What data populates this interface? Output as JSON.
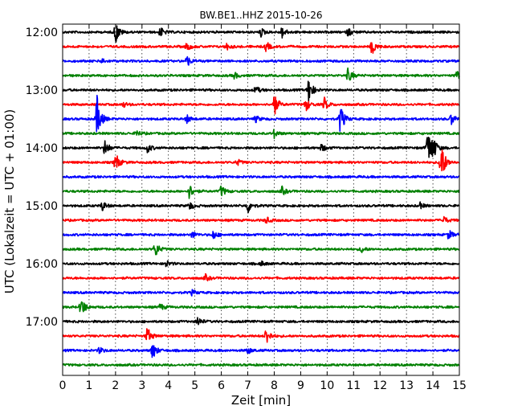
{
  "chart_data": {
    "type": "line",
    "subtype": "helicorder",
    "title": "BW.BE1..HHZ 2015-10-26",
    "xlabel": "Zeit  [min]",
    "ylabel": "UTC (Lokalzeit = UTC + 01:00)",
    "xlim": [
      0,
      15
    ],
    "x_ticks": [
      0,
      1,
      2,
      3,
      4,
      5,
      6,
      7,
      8,
      9,
      10,
      11,
      12,
      13,
      14,
      15
    ],
    "y_tick_labels": [
      "12:00",
      "13:00",
      "14:00",
      "15:00",
      "16:00",
      "17:00"
    ],
    "trace_interval_min": 15,
    "grid": "vertical dotted lines at every minute",
    "color_cycle": [
      "#000000",
      "#ff0000",
      "#0000ff",
      "#008000"
    ],
    "traces": [
      {
        "start": "12:00",
        "events": [
          {
            "t": 2.0,
            "amp": 14
          },
          {
            "t": 3.7,
            "amp": 6
          },
          {
            "t": 7.5,
            "amp": 5
          },
          {
            "t": 8.3,
            "amp": 7
          },
          {
            "t": 10.8,
            "amp": 5
          }
        ]
      },
      {
        "start": "12:15",
        "events": [
          {
            "t": 4.7,
            "amp": 5
          },
          {
            "t": 6.2,
            "amp": 4
          },
          {
            "t": 7.7,
            "amp": 6
          },
          {
            "t": 11.7,
            "amp": 10
          }
        ]
      },
      {
        "start": "12:30",
        "events": [
          {
            "t": 1.5,
            "amp": 3
          },
          {
            "t": 4.7,
            "amp": 7
          }
        ]
      },
      {
        "start": "12:45",
        "events": [
          {
            "t": 6.5,
            "amp": 4
          },
          {
            "t": 10.8,
            "amp": 9
          },
          {
            "t": 14.9,
            "amp": 6
          }
        ]
      },
      {
        "start": "13:00",
        "events": [
          {
            "t": 7.3,
            "amp": 5
          },
          {
            "t": 9.3,
            "amp": 16
          }
        ]
      },
      {
        "start": "13:15",
        "events": [
          {
            "t": 2.3,
            "amp": 3
          },
          {
            "t": 8.0,
            "amp": 14
          },
          {
            "t": 9.2,
            "amp": 8
          },
          {
            "t": 9.9,
            "amp": 8
          }
        ]
      },
      {
        "start": "13:30",
        "events": [
          {
            "t": 1.3,
            "amp": 28
          },
          {
            "t": 4.7,
            "amp": 5
          },
          {
            "t": 7.3,
            "amp": 4
          },
          {
            "t": 10.5,
            "amp": 18
          },
          {
            "t": 14.7,
            "amp": 7
          }
        ]
      },
      {
        "start": "13:45",
        "events": [
          {
            "t": 2.8,
            "amp": 4
          },
          {
            "t": 8.0,
            "amp": 5
          }
        ]
      },
      {
        "start": "14:00",
        "events": [
          {
            "t": 1.6,
            "amp": 10
          },
          {
            "t": 3.2,
            "amp": 6
          },
          {
            "t": 9.8,
            "amp": 5
          },
          {
            "t": 13.8,
            "amp": 24
          },
          {
            "t": 14.0,
            "amp": 12
          }
        ]
      },
      {
        "start": "14:15",
        "events": [
          {
            "t": 2.0,
            "amp": 12
          },
          {
            "t": 6.6,
            "amp": 4
          },
          {
            "t": 14.3,
            "amp": 30
          }
        ]
      },
      {
        "start": "14:30",
        "events": []
      },
      {
        "start": "14:45",
        "events": [
          {
            "t": 4.8,
            "amp": 9
          },
          {
            "t": 6.0,
            "amp": 7
          },
          {
            "t": 8.3,
            "amp": 5
          }
        ]
      },
      {
        "start": "15:00",
        "events": [
          {
            "t": 1.5,
            "amp": 6
          },
          {
            "t": 4.8,
            "amp": 5
          },
          {
            "t": 7.0,
            "amp": 9
          },
          {
            "t": 13.5,
            "amp": 4
          }
        ]
      },
      {
        "start": "15:15",
        "events": [
          {
            "t": 7.7,
            "amp": 4
          },
          {
            "t": 14.4,
            "amp": 5
          }
        ]
      },
      {
        "start": "15:30",
        "events": [
          {
            "t": 4.9,
            "amp": 4
          },
          {
            "t": 5.7,
            "amp": 5
          },
          {
            "t": 14.6,
            "amp": 6
          }
        ]
      },
      {
        "start": "15:45",
        "events": [
          {
            "t": 3.5,
            "amp": 10
          },
          {
            "t": 11.3,
            "amp": 4
          }
        ]
      },
      {
        "start": "16:00",
        "events": [
          {
            "t": 3.9,
            "amp": 4
          },
          {
            "t": 7.5,
            "amp": 3
          }
        ]
      },
      {
        "start": "16:15",
        "events": [
          {
            "t": 5.4,
            "amp": 4
          }
        ]
      },
      {
        "start": "16:30",
        "events": [
          {
            "t": 4.9,
            "amp": 3
          }
        ]
      },
      {
        "start": "16:45",
        "events": [
          {
            "t": 0.7,
            "amp": 13
          },
          {
            "t": 3.7,
            "amp": 4
          }
        ]
      },
      {
        "start": "17:00",
        "events": [
          {
            "t": 5.1,
            "amp": 6
          }
        ]
      },
      {
        "start": "17:15",
        "events": [
          {
            "t": 3.2,
            "amp": 11
          },
          {
            "t": 7.7,
            "amp": 11
          }
        ]
      },
      {
        "start": "17:30",
        "events": [
          {
            "t": 1.4,
            "amp": 4
          },
          {
            "t": 3.4,
            "amp": 11
          },
          {
            "t": 7.0,
            "amp": 4
          }
        ]
      },
      {
        "start": "17:45",
        "events": []
      }
    ]
  }
}
